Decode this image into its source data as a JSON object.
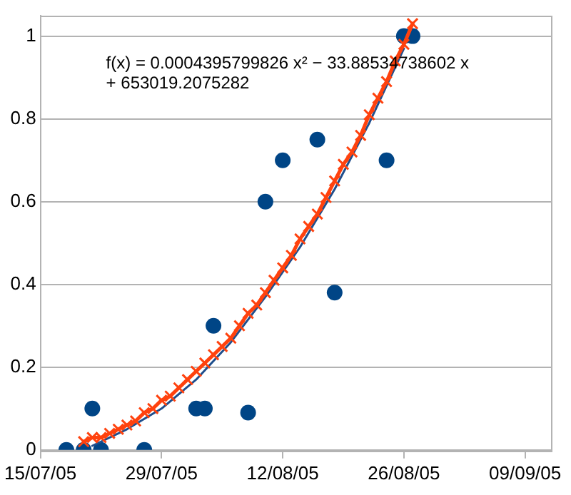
{
  "chart_data": {
    "type": "scatter",
    "annotations": [
      "f(x) = 0.0004395799826 x² − 33.88534738602 x\n+ 653019.2075282"
    ],
    "xlim": [
      "2005-07-15",
      "2005-09-12"
    ],
    "xticks": [
      {
        "value": "2005-07-15",
        "label": "15/07/05"
      },
      {
        "value": "2005-07-29",
        "label": "29/07/05"
      },
      {
        "value": "2005-08-12",
        "label": "12/08/05"
      },
      {
        "value": "2005-08-26",
        "label": "26/08/05"
      },
      {
        "value": "2005-09-09",
        "label": "09/09/05"
      }
    ],
    "ylim": [
      0,
      1.05
    ],
    "yticks": [
      0,
      0.2,
      0.4,
      0.6,
      0.8,
      1
    ],
    "grid": "y",
    "legend": false,
    "series": [
      {
        "type": "line",
        "color": "#ff420e",
        "marker": "cross",
        "x": [
          "2005-07-20",
          "2005-07-21",
          "2005-07-22",
          "2005-07-23",
          "2005-07-24",
          "2005-07-25",
          "2005-07-26",
          "2005-07-27",
          "2005-07-28",
          "2005-07-29",
          "2005-07-30",
          "2005-07-31",
          "2005-08-01",
          "2005-08-02",
          "2005-08-03",
          "2005-08-04",
          "2005-08-05",
          "2005-08-06",
          "2005-08-07",
          "2005-08-08",
          "2005-08-09",
          "2005-08-10",
          "2005-08-11",
          "2005-08-12",
          "2005-08-13",
          "2005-08-14",
          "2005-08-15",
          "2005-08-16",
          "2005-08-17",
          "2005-08-18",
          "2005-08-19",
          "2005-08-20",
          "2005-08-21",
          "2005-08-22",
          "2005-08-23",
          "2005-08-24",
          "2005-08-25",
          "2005-08-26",
          "2005-08-27"
        ],
        "values": [
          0.02,
          0.03,
          0.03,
          0.04,
          0.05,
          0.06,
          0.07,
          0.09,
          0.1,
          0.12,
          0.13,
          0.15,
          0.17,
          0.19,
          0.21,
          0.23,
          0.25,
          0.27,
          0.3,
          0.33,
          0.35,
          0.38,
          0.41,
          0.44,
          0.47,
          0.51,
          0.54,
          0.57,
          0.61,
          0.65,
          0.69,
          0.72,
          0.76,
          0.81,
          0.85,
          0.89,
          0.94,
          0.98,
          1.03
        ]
      },
      {
        "type": "line",
        "color": "#1f4e8c",
        "marker": "none",
        "x": [
          "2005-07-21",
          "2005-07-25",
          "2005-07-29",
          "2005-08-02",
          "2005-08-06",
          "2005-08-10",
          "2005-08-14",
          "2005-08-18",
          "2005-08-22",
          "2005-08-26"
        ],
        "values": [
          0.01,
          0.05,
          0.1,
          0.17,
          0.26,
          0.37,
          0.49,
          0.63,
          0.79,
          0.97
        ]
      },
      {
        "type": "scatter",
        "color": "#004586",
        "marker": "circle",
        "x": [
          "2005-07-18",
          "2005-07-20",
          "2005-07-21",
          "2005-07-22",
          "2005-07-27",
          "2005-08-02",
          "2005-08-03",
          "2005-08-04",
          "2005-08-08",
          "2005-08-10",
          "2005-08-12",
          "2005-08-16",
          "2005-08-18",
          "2005-08-24",
          "2005-08-26",
          "2005-08-27"
        ],
        "values": [
          0,
          0,
          0.1,
          0,
          0,
          0.1,
          0.1,
          0.3,
          0.09,
          0.6,
          0.7,
          0.75,
          0.38,
          0.7,
          1,
          1
        ]
      }
    ]
  }
}
